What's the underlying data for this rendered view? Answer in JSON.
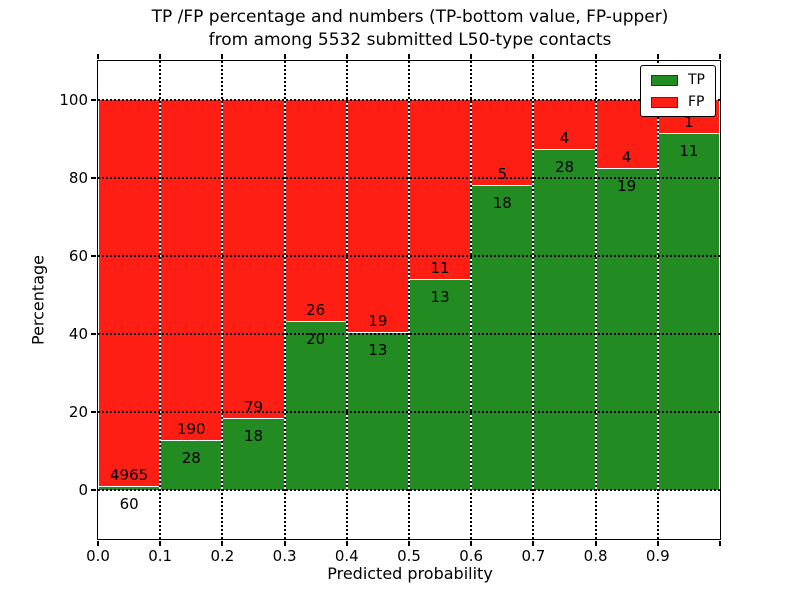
{
  "chart_data": {
    "type": "bar",
    "subtype": "stacked-percentage",
    "title_line1": "TP /FP percentage and numbers (TP-bottom value, FP-upper)",
    "title_line2": "from among 5532 submitted L50-type contacts",
    "xlabel": "Predicted probability",
    "ylabel": "Percentage",
    "total_contacts": 5532,
    "xlim": [
      0.0,
      1.0
    ],
    "ylim": [
      -12.5,
      110
    ],
    "bin_width": 0.1,
    "x_tick_labels": [
      "0.0",
      "0.1",
      "0.2",
      "0.3",
      "0.4",
      "0.5",
      "0.6",
      "0.7",
      "0.8",
      "0.9"
    ],
    "y_ticks": [
      0,
      20,
      40,
      60,
      80,
      100
    ],
    "grid": "dotted black, drawn above bars",
    "legend_position": "upper-right",
    "series": [
      {
        "name": "TP",
        "color": "#228b22",
        "counts": [
          60,
          28,
          18,
          20,
          13,
          13,
          18,
          28,
          19,
          11
        ]
      },
      {
        "name": "FP",
        "color": "#ff1e14",
        "counts": [
          4965,
          190,
          79,
          26,
          19,
          11,
          5,
          4,
          4,
          1
        ]
      }
    ],
    "tp_percentages": [
      1.19,
      12.84,
      18.56,
      43.48,
      40.63,
      54.17,
      78.26,
      87.5,
      82.61,
      91.67
    ]
  }
}
